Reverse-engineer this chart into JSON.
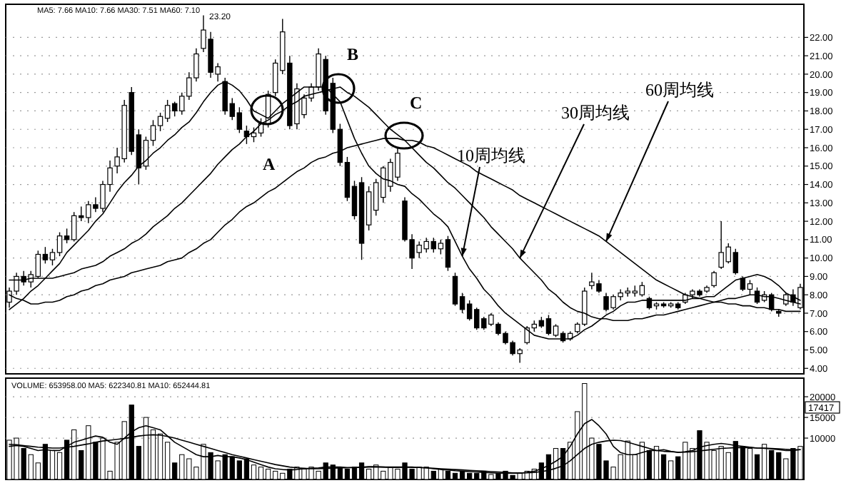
{
  "chart_data": [
    {
      "type": "candlestick",
      "categories": [
        null,
        null,
        null,
        null,
        null,
        null,
        null,
        null,
        null,
        null,
        null,
        null,
        null,
        null,
        null,
        null,
        null,
        null,
        null,
        null,
        null,
        null,
        null,
        null,
        null,
        null,
        null,
        null,
        null,
        null,
        null,
        null,
        null,
        null,
        null,
        null,
        null,
        null,
        null,
        null,
        null,
        null,
        null,
        null,
        null,
        null,
        null,
        null,
        null,
        null,
        null,
        null,
        null,
        null,
        null,
        null,
        null,
        null,
        null,
        null,
        null,
        null,
        null,
        null,
        null,
        null,
        null,
        null,
        null,
        null,
        null,
        null,
        null,
        null,
        null,
        null,
        null,
        null,
        null,
        null,
        null,
        null,
        null,
        null,
        null,
        null,
        null,
        null,
        null,
        null,
        null,
        null,
        null,
        null,
        null,
        null,
        null,
        null,
        null,
        null,
        null,
        null,
        null,
        null,
        null,
        null,
        null,
        null,
        null,
        null,
        null
      ],
      "ohlc": [
        [
          7.6,
          8.4,
          7.3,
          8.2
        ],
        [
          8.2,
          9.2,
          8.0,
          9.0
        ],
        [
          9.0,
          9.3,
          8.5,
          8.7
        ],
        [
          8.7,
          9.3,
          8.4,
          9.1
        ],
        [
          9.0,
          10.4,
          8.9,
          10.2
        ],
        [
          10.2,
          10.6,
          9.7,
          9.9
        ],
        [
          9.9,
          10.5,
          9.6,
          10.3
        ],
        [
          10.3,
          11.4,
          10.1,
          11.2
        ],
        [
          11.2,
          11.6,
          10.8,
          11.0
        ],
        [
          11.0,
          12.5,
          10.9,
          12.3
        ],
        [
          12.3,
          12.8,
          12.0,
          12.2
        ],
        [
          12.2,
          13.1,
          11.9,
          12.9
        ],
        [
          12.9,
          13.3,
          12.5,
          12.7
        ],
        [
          12.7,
          14.2,
          12.5,
          14.0
        ],
        [
          14.0,
          15.3,
          13.6,
          14.9
        ],
        [
          15.0,
          16.0,
          14.6,
          15.5
        ],
        [
          15.4,
          18.6,
          15.2,
          18.3
        ],
        [
          19.0,
          19.3,
          15.6,
          15.8
        ],
        [
          16.7,
          17.0,
          14.0,
          14.9
        ],
        [
          15.0,
          16.6,
          14.8,
          16.4
        ],
        [
          16.4,
          17.5,
          16.1,
          17.2
        ],
        [
          17.2,
          17.9,
          16.9,
          17.7
        ],
        [
          17.6,
          18.6,
          17.4,
          18.3
        ],
        [
          18.4,
          18.5,
          17.7,
          18.0
        ],
        [
          18.0,
          19.0,
          17.8,
          18.8
        ],
        [
          18.8,
          20.1,
          18.6,
          19.8
        ],
        [
          19.8,
          21.4,
          19.6,
          21.1
        ],
        [
          21.4,
          23.2,
          21.2,
          22.4
        ],
        [
          21.9,
          22.3,
          19.8,
          20.1
        ],
        [
          20.0,
          20.6,
          19.6,
          20.4
        ],
        [
          19.6,
          19.8,
          17.8,
          18.0
        ],
        [
          18.4,
          18.7,
          17.5,
          17.7
        ],
        [
          17.9,
          18.2,
          16.8,
          17.0
        ],
        [
          16.9,
          17.2,
          16.2,
          16.6
        ],
        [
          16.6,
          17.1,
          16.3,
          16.8
        ],
        [
          16.8,
          17.6,
          16.6,
          17.3
        ],
        [
          17.3,
          19.1,
          17.1,
          18.9
        ],
        [
          19.0,
          20.8,
          18.8,
          20.6
        ],
        [
          20.2,
          23.0,
          20.0,
          22.3
        ],
        [
          20.6,
          21.0,
          17.0,
          17.2
        ],
        [
          17.3,
          19.5,
          17.0,
          19.2
        ],
        [
          17.8,
          18.9,
          17.6,
          18.7
        ],
        [
          18.7,
          19.5,
          18.5,
          19.3
        ],
        [
          19.3,
          21.4,
          19.1,
          21.1
        ],
        [
          20.8,
          21.0,
          17.8,
          18.0
        ],
        [
          19.5,
          19.8,
          16.8,
          17.0
        ],
        [
          17.0,
          17.3,
          15.0,
          15.2
        ],
        [
          15.2,
          15.5,
          13.1,
          13.3
        ],
        [
          13.9,
          14.2,
          12.1,
          12.3
        ],
        [
          14.1,
          14.4,
          9.9,
          10.8
        ],
        [
          11.8,
          13.9,
          11.5,
          13.6
        ],
        [
          12.6,
          14.3,
          12.3,
          14.1
        ],
        [
          13.3,
          15.0,
          13.0,
          14.9
        ],
        [
          13.9,
          15.4,
          13.6,
          15.2
        ],
        [
          14.4,
          16.0,
          14.2,
          15.7
        ],
        [
          13.1,
          13.3,
          10.9,
          11.0
        ],
        [
          11.0,
          11.3,
          9.4,
          10.0
        ],
        [
          10.3,
          10.9,
          10.0,
          10.7
        ],
        [
          10.5,
          11.1,
          10.3,
          10.9
        ],
        [
          10.9,
          11.1,
          10.3,
          10.5
        ],
        [
          10.5,
          11.0,
          10.2,
          10.8
        ],
        [
          11.0,
          11.2,
          9.3,
          9.5
        ],
        [
          9.0,
          9.2,
          7.4,
          7.5
        ],
        [
          7.9,
          8.1,
          7.0,
          7.2
        ],
        [
          7.5,
          7.7,
          6.6,
          6.7
        ],
        [
          7.2,
          7.3,
          6.1,
          6.2
        ],
        [
          6.7,
          6.8,
          6.1,
          6.2
        ],
        [
          6.4,
          7.0,
          6.3,
          6.9
        ],
        [
          6.4,
          6.5,
          5.8,
          5.9
        ],
        [
          5.9,
          6.0,
          5.3,
          5.4
        ],
        [
          5.4,
          5.5,
          4.7,
          4.8
        ],
        [
          4.8,
          5.1,
          4.3,
          5.0
        ],
        [
          5.4,
          6.3,
          5.3,
          6.2
        ],
        [
          6.2,
          6.6,
          6.0,
          6.4
        ],
        [
          6.6,
          6.8,
          6.2,
          6.3
        ],
        [
          6.7,
          6.9,
          5.8,
          5.9
        ],
        [
          5.8,
          6.4,
          5.7,
          6.3
        ],
        [
          5.9,
          6.0,
          5.4,
          5.5
        ],
        [
          5.6,
          6.0,
          5.5,
          5.9
        ],
        [
          6.0,
          6.5,
          5.9,
          6.4
        ],
        [
          6.4,
          8.4,
          6.3,
          8.2
        ],
        [
          8.5,
          9.2,
          8.3,
          8.7
        ],
        [
          8.6,
          8.8,
          8.1,
          8.2
        ],
        [
          7.9,
          8.1,
          7.1,
          7.2
        ],
        [
          7.3,
          8.0,
          7.2,
          7.9
        ],
        [
          7.9,
          8.3,
          7.7,
          8.1
        ],
        [
          8.1,
          8.4,
          7.9,
          8.2
        ],
        [
          8.1,
          8.5,
          7.9,
          8.2
        ],
        [
          8.0,
          8.7,
          7.9,
          8.5
        ],
        [
          7.8,
          7.9,
          7.2,
          7.3
        ],
        [
          7.4,
          7.6,
          7.2,
          7.5
        ],
        [
          7.5,
          7.6,
          7.3,
          7.4
        ],
        [
          7.4,
          7.6,
          7.3,
          7.5
        ],
        [
          7.5,
          7.6,
          7.2,
          7.3
        ],
        [
          7.6,
          8.1,
          7.5,
          8.0
        ],
        [
          8.0,
          8.3,
          7.8,
          8.2
        ],
        [
          8.2,
          8.3,
          7.9,
          8.0
        ],
        [
          8.2,
          8.5,
          8.1,
          8.4
        ],
        [
          8.5,
          9.3,
          8.4,
          9.2
        ],
        [
          9.5,
          12.0,
          9.4,
          10.3
        ],
        [
          9.8,
          10.8,
          9.7,
          10.6
        ],
        [
          10.3,
          10.5,
          9.1,
          9.2
        ],
        [
          8.9,
          9.0,
          8.2,
          8.3
        ],
        [
          8.3,
          8.8,
          8.0,
          8.6
        ],
        [
          8.2,
          8.4,
          7.5,
          7.6
        ],
        [
          7.7,
          8.2,
          7.6,
          8.0
        ],
        [
          8.0,
          8.1,
          7.1,
          7.2
        ],
        [
          7.1,
          7.2,
          6.8,
          7.0
        ],
        [
          7.5,
          8.1,
          7.4,
          8.0
        ],
        [
          8.0,
          8.3,
          7.4,
          7.6
        ],
        [
          7.3,
          8.6,
          7.2,
          8.4
        ]
      ],
      "series": [
        {
          "type": "line",
          "color": "#000000",
          "values": [
            7.2,
            7.5,
            7.8,
            8.2,
            8.5,
            8.9,
            9.3,
            9.7,
            10.3,
            10.7,
            11.1,
            11.5,
            12.0,
            12.4,
            13.0,
            13.6,
            14.1,
            14.5,
            15.0,
            15.3,
            15.7,
            16.0,
            16.4,
            16.7,
            17.1,
            17.4,
            17.9,
            18.5,
            19.0,
            19.4,
            19.6,
            19.4,
            19.1,
            18.6,
            18.0,
            17.8,
            17.6,
            18.0,
            18.4,
            18.7,
            19.0,
            19.3,
            19.3,
            19.3,
            19.3,
            18.9,
            18.5,
            17.5,
            16.5,
            15.7,
            15.0,
            14.6,
            14.3,
            14.2,
            14.0,
            13.9,
            13.5,
            13.2,
            12.8,
            12.4,
            12.1,
            11.7,
            10.9,
            10.1,
            9.4,
            8.9,
            8.3,
            7.9,
            7.4,
            7.0,
            6.7,
            6.4,
            6.1,
            5.8,
            5.7,
            5.6,
            5.6,
            5.6,
            5.6,
            5.8,
            6.1,
            6.3,
            6.6,
            6.9,
            7.1,
            7.4,
            7.6,
            7.6,
            7.7,
            7.7,
            7.7,
            7.7,
            7.7,
            7.7,
            7.7,
            7.8,
            7.8,
            7.9,
            7.9,
            8.2,
            8.5,
            8.8,
            8.9,
            9.0,
            9.1,
            9.0,
            8.8,
            8.5,
            8.1,
            7.9,
            7.7
          ]
        },
        {
          "type": "line",
          "color": "#000000",
          "values": [
            8.8,
            8.8,
            8.8,
            8.9,
            8.9,
            8.9,
            8.9,
            9.0,
            9.1,
            9.2,
            9.4,
            9.5,
            9.6,
            9.8,
            10.1,
            10.3,
            10.5,
            10.8,
            11.0,
            11.3,
            11.7,
            12.0,
            12.3,
            12.7,
            13.0,
            13.4,
            13.8,
            14.2,
            14.6,
            15.1,
            15.5,
            15.9,
            16.2,
            16.6,
            16.9,
            17.3,
            17.5,
            17.8,
            18.0,
            18.3,
            18.5,
            18.8,
            18.9,
            19.0,
            19.1,
            19.2,
            19.3,
            19.0,
            18.8,
            18.5,
            18.2,
            17.8,
            17.4,
            17.0,
            16.7,
            16.4,
            16.0,
            15.6,
            15.2,
            14.9,
            14.5,
            14.1,
            13.8,
            13.4,
            13.0,
            12.6,
            12.2,
            11.7,
            11.3,
            10.9,
            10.5,
            10.0,
            9.6,
            9.2,
            8.8,
            8.3,
            8.0,
            7.6,
            7.3,
            7.1,
            7.0,
            6.8,
            6.7,
            6.7,
            6.6,
            6.6,
            6.6,
            6.7,
            6.7,
            6.8,
            6.9,
            6.9,
            7.0,
            7.1,
            7.2,
            7.3,
            7.4,
            7.5,
            7.6,
            7.7,
            7.8,
            7.8,
            7.9,
            8.0,
            8.0,
            7.9,
            7.9,
            7.8,
            7.7,
            7.6,
            7.5
          ]
        },
        {
          "type": "line",
          "color": "#000000",
          "values": [
            8.0,
            7.8,
            7.7,
            7.5,
            7.5,
            7.6,
            7.6,
            7.7,
            7.9,
            8.0,
            8.2,
            8.3,
            8.5,
            8.6,
            8.8,
            8.9,
            9.0,
            9.2,
            9.3,
            9.4,
            9.5,
            9.6,
            9.8,
            9.9,
            10.0,
            10.3,
            10.5,
            10.8,
            11.0,
            11.4,
            11.8,
            12.1,
            12.5,
            12.8,
            13.0,
            13.3,
            13.6,
            13.8,
            14.1,
            14.4,
            14.7,
            14.9,
            15.2,
            15.4,
            15.5,
            15.7,
            15.8,
            16.0,
            16.1,
            16.2,
            16.3,
            16.4,
            16.5,
            16.5,
            16.5,
            16.4,
            16.4,
            16.3,
            16.1,
            16.0,
            15.8,
            15.6,
            15.4,
            15.2,
            15.0,
            14.7,
            14.5,
            14.3,
            14.1,
            13.9,
            13.7,
            13.4,
            13.2,
            13.0,
            12.8,
            12.6,
            12.4,
            12.2,
            12.0,
            11.8,
            11.6,
            11.4,
            11.2,
            10.9,
            10.6,
            10.3,
            10.0,
            9.7,
            9.4,
            9.1,
            8.8,
            8.6,
            8.4,
            8.2,
            8.0,
            7.9,
            7.8,
            7.7,
            7.6,
            7.6,
            7.5,
            7.5,
            7.4,
            7.4,
            7.3,
            7.3,
            7.2,
            7.2,
            7.1,
            7.1,
            7.1
          ]
        }
      ],
      "ylim": [
        3.7,
        23.8
      ],
      "yticks": [
        {
          "value": 4,
          "label": "4.00"
        },
        {
          "value": 5,
          "label": "5.00"
        },
        {
          "value": 6,
          "label": "6.00"
        },
        {
          "value": 7,
          "label": "7.00"
        },
        {
          "value": 8,
          "label": "8.00"
        },
        {
          "value": 9,
          "label": "9.00"
        },
        {
          "value": 10,
          "label": "10.00"
        },
        {
          "value": 11,
          "label": "11.00"
        },
        {
          "value": 12,
          "label": "12.00"
        },
        {
          "value": 13,
          "label": "13.00"
        },
        {
          "value": 14,
          "label": "14.00"
        },
        {
          "value": 15,
          "label": "15.00"
        },
        {
          "value": 16,
          "label": "16.00"
        },
        {
          "value": 17,
          "label": "17.00"
        },
        {
          "value": 18,
          "label": "18.00"
        },
        {
          "value": 19,
          "label": "19.00"
        },
        {
          "value": 20,
          "label": "20.00"
        },
        {
          "value": 21,
          "label": "21.00"
        },
        {
          "value": 22,
          "label": "22.00"
        }
      ],
      "grid": "y",
      "annotations": [
        "A",
        "B",
        "C",
        "10周均线",
        "30周均线",
        "60周均线",
        "MA5: 7.66 MA10: 7.66 MA30: 7.51 MA60: 7.10",
        "23.20"
      ]
    },
    {
      "type": "bar",
      "categories": [
        null,
        null,
        null,
        null,
        null,
        null,
        null,
        null,
        null,
        null,
        null,
        null,
        null,
        null,
        null,
        null,
        null,
        null,
        null,
        null,
        null,
        null,
        null,
        null,
        null,
        null,
        null,
        null,
        null,
        null,
        null,
        null,
        null,
        null,
        null,
        null,
        null,
        null,
        null,
        null,
        null,
        null,
        null,
        null,
        null,
        null,
        null,
        null,
        null,
        null,
        null,
        null,
        null,
        null,
        null,
        null,
        null,
        null,
        null,
        null,
        null,
        null,
        null,
        null,
        null,
        null,
        null,
        null,
        null,
        null,
        null,
        null,
        null,
        null,
        null,
        null,
        null,
        null,
        null,
        null,
        null,
        null,
        null,
        null,
        null,
        null,
        null,
        null,
        null,
        null,
        null,
        null,
        null,
        null,
        null,
        null,
        null,
        null,
        null,
        null,
        null,
        null,
        null,
        null,
        null,
        null,
        null,
        null,
        null,
        null,
        null
      ],
      "series": [
        {
          "values": [
            9500,
            10000,
            7500,
            6000,
            4000,
            8500,
            7000,
            6500,
            9500,
            12000,
            7000,
            13000,
            9000,
            10000,
            2000,
            9000,
            14000,
            18000,
            8000,
            15000,
            12000,
            11000,
            9000,
            4000,
            6000,
            5000,
            3000,
            8500,
            6500,
            4500,
            6000,
            5500,
            4500,
            5000,
            3500,
            3000,
            2500,
            2000,
            1500,
            2500,
            3000,
            2500,
            3000,
            2000,
            4000,
            3500,
            3000,
            2500,
            3000,
            4000,
            2500,
            3500,
            2000,
            3000,
            2500,
            4000,
            2500,
            3000,
            3000,
            2000,
            2500,
            2000,
            1500,
            2000,
            1500,
            1500,
            2000,
            1200,
            1500,
            2000,
            1000,
            1500,
            2000,
            2500,
            4000,
            6000,
            7500,
            7500,
            9000,
            16400,
            23200,
            10000,
            8500,
            4500,
            3000,
            6000,
            9300,
            6000,
            9000,
            7000,
            8000,
            6000,
            4500,
            5500,
            9000,
            7500,
            11800,
            9000,
            7000,
            8000,
            6500,
            9200,
            8000,
            7500,
            6000,
            8500,
            7000,
            6500,
            5000,
            7500,
            8000
          ],
          "colors": [
            "#ffffff",
            "#ffffff",
            "#000000",
            "#ffffff",
            "#ffffff",
            "#000000",
            "#ffffff",
            "#ffffff",
            "#000000",
            "#ffffff",
            "#000000",
            "#ffffff",
            "#000000",
            "#ffffff",
            "#ffffff",
            "#ffffff",
            "#ffffff",
            "#000000",
            "#000000",
            "#ffffff",
            "#ffffff",
            "#ffffff",
            "#ffffff",
            "#000000",
            "#ffffff",
            "#ffffff",
            "#ffffff",
            "#ffffff",
            "#000000",
            "#ffffff",
            "#000000",
            "#000000",
            "#000000",
            "#000000",
            "#ffffff",
            "#ffffff",
            "#ffffff",
            "#ffffff",
            "#ffffff",
            "#000000",
            "#ffffff",
            "#ffffff",
            "#ffffff",
            "#ffffff",
            "#000000",
            "#000000",
            "#000000",
            "#000000",
            "#000000",
            "#000000",
            "#ffffff",
            "#ffffff",
            "#ffffff",
            "#ffffff",
            "#ffffff",
            "#000000",
            "#000000",
            "#ffffff",
            "#ffffff",
            "#000000",
            "#ffffff",
            "#000000",
            "#000000",
            "#000000",
            "#000000",
            "#000000",
            "#000000",
            "#ffffff",
            "#000000",
            "#000000",
            "#000000",
            "#ffffff",
            "#ffffff",
            "#ffffff",
            "#000000",
            "#000000",
            "#ffffff",
            "#000000",
            "#ffffff",
            "#ffffff",
            "#ffffff",
            "#ffffff",
            "#000000",
            "#000000",
            "#ffffff",
            "#ffffff",
            "#ffffff",
            "#ffffff",
            "#ffffff",
            "#000000",
            "#ffffff",
            "#000000",
            "#ffffff",
            "#000000",
            "#ffffff",
            "#ffffff",
            "#000000",
            "#ffffff",
            "#ffffff",
            "#ffffff",
            "#ffffff",
            "#000000",
            "#000000",
            "#ffffff",
            "#000000",
            "#ffffff",
            "#000000",
            "#000000",
            "#ffffff",
            "#000000",
            "#ffffff"
          ]
        },
        {
          "type": "line",
          "color": "#000000",
          "values": [
            8000,
            8200,
            8000,
            7500,
            7000,
            7200,
            7000,
            7000,
            8000,
            9000,
            9500,
            10000,
            10500,
            10200,
            9000,
            8500,
            10000,
            11500,
            12500,
            13000,
            12500,
            12000,
            10500,
            9000,
            8000,
            7000,
            6000,
            5500,
            5500,
            5800,
            5500,
            5500,
            5200,
            4800,
            4200,
            3600,
            3000,
            2600,
            2400,
            2300,
            2400,
            2600,
            2700,
            2800,
            3000,
            3000,
            3000,
            2900,
            2900,
            3000,
            3100,
            3100,
            3000,
            2900,
            2900,
            3000,
            3000,
            2900,
            2800,
            2600,
            2400,
            2300,
            2100,
            2000,
            1900,
            1800,
            1700,
            1600,
            1500,
            1500,
            1500,
            1500,
            1700,
            2000,
            2600,
            3400,
            4400,
            5600,
            8000,
            11000,
            13500,
            14500,
            13000,
            11000,
            8000,
            6500,
            6000,
            6000,
            6500,
            7000,
            7000,
            7200,
            6800,
            6500,
            6700,
            7000,
            7800,
            8200,
            8500,
            8700,
            8500,
            8200,
            8000,
            7800,
            7600,
            7500,
            7400,
            7200,
            7000,
            7000,
            7200
          ]
        },
        {
          "type": "line",
          "color": "#000000",
          "values": [
            8500,
            8400,
            8200,
            8000,
            7800,
            7700,
            7600,
            7600,
            7800,
            8000,
            8300,
            8600,
            9000,
            9300,
            9500,
            9700,
            9900,
            10200,
            10500,
            10700,
            10800,
            10700,
            10400,
            10000,
            9500,
            9000,
            8500,
            8000,
            7500,
            7000,
            6500,
            6000,
            5600,
            5200,
            4800,
            4400,
            4000,
            3600,
            3300,
            3000,
            2800,
            2700,
            2600,
            2600,
            2700,
            2700,
            2800,
            2800,
            2900,
            2900,
            3000,
            3000,
            3000,
            3000,
            3000,
            3000,
            2900,
            2900,
            2800,
            2700,
            2600,
            2500,
            2400,
            2300,
            2200,
            2100,
            2000,
            1900,
            1800,
            1700,
            1600,
            1600,
            1600,
            1700,
            1900,
            2200,
            2700,
            3300,
            4500,
            6000,
            7500,
            8500,
            9000,
            9300,
            9500,
            9400,
            9000,
            8500,
            8000,
            7500,
            7000,
            6800,
            6700,
            6600,
            6600,
            6700,
            6900,
            7100,
            7300,
            7500,
            7600,
            7700,
            7700,
            7700,
            7600,
            7600,
            7500,
            7400,
            7300,
            7200,
            7200
          ]
        }
      ],
      "ylim": [
        0,
        24500
      ],
      "yticks": [
        10000,
        15000,
        20000
      ],
      "grid": "y",
      "annotations": [
        "VOLUME: 653958.00 MA5: 622340.81 MA10: 652444.81",
        {
          "text": "17417",
          "y": 17417
        }
      ]
    }
  ]
}
